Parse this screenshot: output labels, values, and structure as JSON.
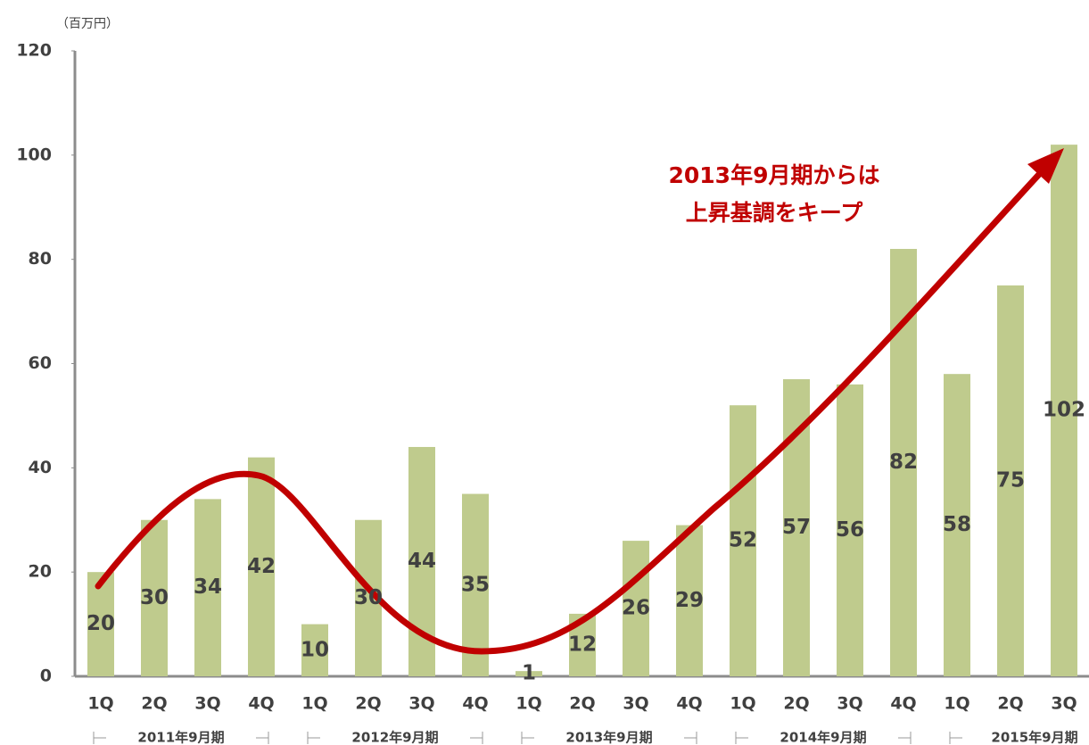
{
  "chart_data": {
    "type": "bar",
    "unit_label": "（百万円）",
    "annotation": [
      "2013年9月期からは",
      "上昇基調をキープ"
    ],
    "categories": [
      "1Q",
      "2Q",
      "3Q",
      "4Q",
      "1Q",
      "2Q",
      "3Q",
      "4Q",
      "1Q",
      "2Q",
      "3Q",
      "4Q",
      "1Q",
      "2Q",
      "3Q",
      "4Q",
      "1Q",
      "2Q",
      "3Q"
    ],
    "groups": [
      "2011年9月期",
      "2012年9月期",
      "2013年9月期",
      "2014年9月期",
      "2015年9月期"
    ],
    "values": [
      20,
      30,
      34,
      42,
      10,
      30,
      44,
      35,
      1,
      12,
      26,
      29,
      52,
      57,
      56,
      82,
      58,
      75,
      102
    ],
    "color": "#bfcb8d",
    "ylim": [
      0,
      120
    ],
    "yticks": [
      0,
      20,
      40,
      60,
      80,
      100,
      120
    ],
    "grid": false
  }
}
